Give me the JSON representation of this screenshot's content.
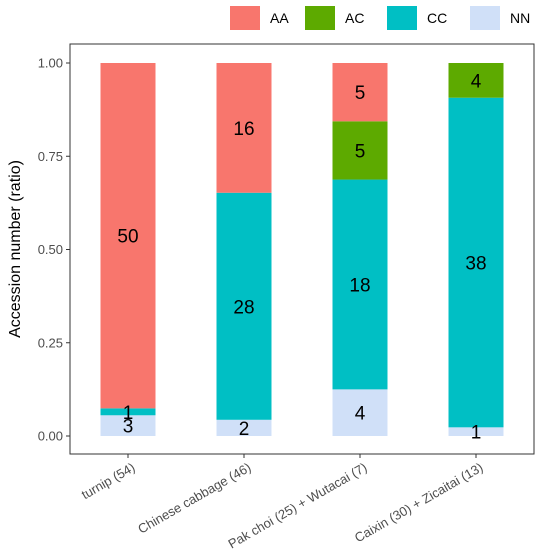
{
  "chart_data": {
    "type": "bar",
    "stacked": true,
    "normalized": true,
    "ylabel": "Accession number (ratio)",
    "xlabel": "",
    "ylim": [
      0,
      1
    ],
    "yticks": [
      "0.00",
      "0.25",
      "0.50",
      "0.75",
      "1.00"
    ],
    "categories": [
      "turnip (54)",
      "Chinese cabbage (46)",
      "Pak choi (25) + Wutacai (7)",
      "Caixin (30) + Zicaitai (13)"
    ],
    "legend_position": "top-right",
    "series": [
      {
        "name": "AA",
        "color": "#F8766D",
        "values": [
          50,
          16,
          5,
          0
        ]
      },
      {
        "name": "AC",
        "color": "#5DAA00",
        "values": [
          0,
          0,
          5,
          4
        ]
      },
      {
        "name": "CC",
        "color": "#00BFC4",
        "values": [
          1,
          28,
          18,
          38
        ]
      },
      {
        "name": "NN",
        "color": "#D0E0F8",
        "values": [
          3,
          2,
          4,
          1
        ]
      }
    ],
    "stack_order_bottom_to_top": [
      "NN",
      "CC",
      "AC",
      "AA"
    ]
  }
}
